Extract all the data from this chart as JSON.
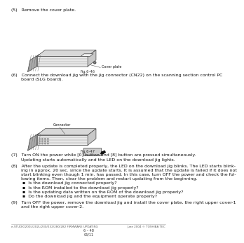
{
  "bg_color": "#ffffff",
  "text_color": "#1a1a1a",
  "step5": "(5)   Remove the cover plate.",
  "fig46_label": "Fig.6-46",
  "step6_line1": "(6)   Connect the download jig with the jig connector (CN22) on the scanning section control PC",
  "step6_line2": "       board (SLG board).",
  "fig47_label": "Fig.6-47",
  "step7_line1": "(7)   Turn ON the power while [0] button and [8] button are pressed simultaneously.",
  "step7_line2": "       Updating starts automatically and the LED on the download jig lights.",
  "step8_line1": "(8)   After the update is completed properly, the LED on the download jig blinks. The LED starts blink-",
  "step8_line2": "       ing in approx. 20 sec. since the update starts. It is assumed that the update is failed if it does not",
  "step8_line3": "       start blinking even though 1 min. has passed. In this case, turn OFF the power and check the fol-",
  "step8_line4": "       lowing items. Then, clear the problem and restart updating from the beginning.",
  "bullet1": "        ▪  Is the download jig connected properly?",
  "bullet2": "        ▪  Is the ROM installed to the download jig properly?",
  "bullet3": "        ▪  Is the updating data written on the ROM of the download jig properly?",
  "bullet4": "        ▪  Do the download jig and the equipment operate properly?",
  "step9_line1": "(9)   Turn OFF the power, remove the download jig and install the cover plate, the right upper cover-1",
  "step9_line2": "       and the right upper cover-2.",
  "footer_left": "e-STUDIO200L/202L/230/232/280/282 FIRMWARE UPDATING",
  "footer_right": "June 2004 © TOSHIBA TEC",
  "footer_page": "6 – 48",
  "footer_sub": "05/11",
  "cover_plate_label": "Cover plate",
  "connector_label": "Connector",
  "lc": "#444444",
  "lw": 0.5
}
